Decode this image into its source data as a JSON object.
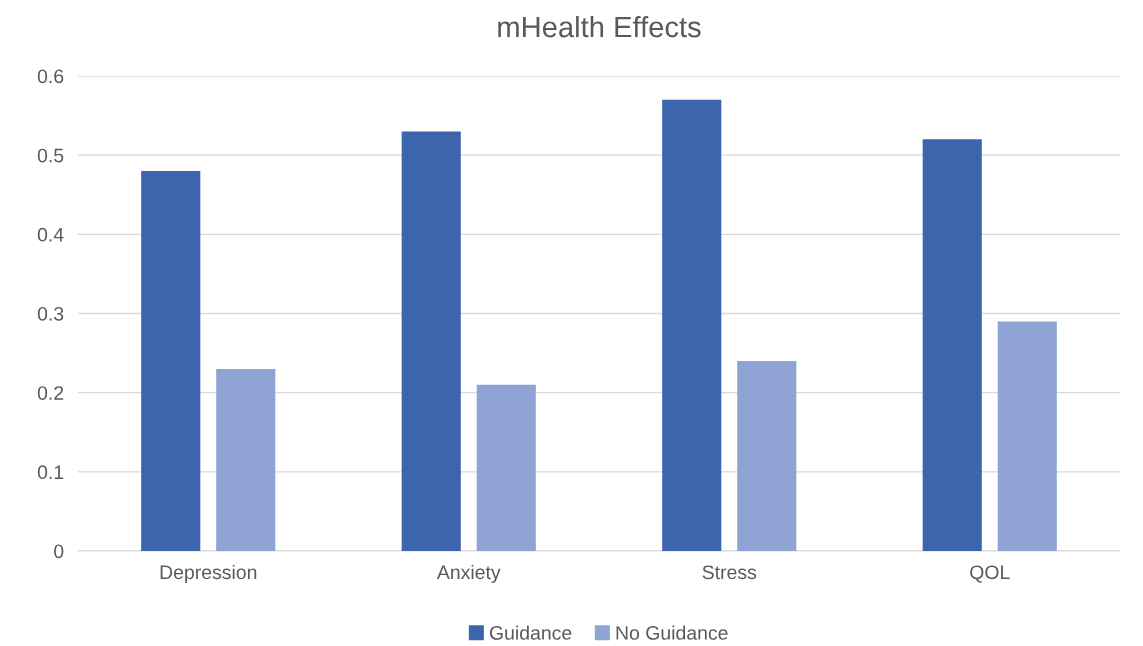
{
  "chart_data": {
    "type": "bar",
    "title": "mHealth Effects",
    "categories": [
      "Depression",
      "Anxiety",
      "Stress",
      "QOL"
    ],
    "series": [
      {
        "name": "Guidance",
        "color": "#3c65ad",
        "values": [
          0.48,
          0.53,
          0.57,
          0.52
        ]
      },
      {
        "name": "No Guidance",
        "color": "#8fa4d5",
        "values": [
          0.23,
          0.21,
          0.24,
          0.29
        ]
      }
    ],
    "ylim": [
      0,
      0.6
    ],
    "yticks": [
      0,
      0.1,
      0.2,
      0.3,
      0.4,
      0.5,
      0.6
    ],
    "grid": "y",
    "legend": "bottom"
  }
}
